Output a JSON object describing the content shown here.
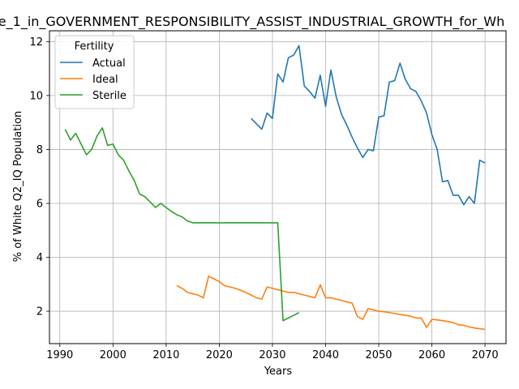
{
  "chart_data": {
    "type": "line",
    "title": "e_1_in_GOVERNMENT_RESPONSIBILITY_ASSIST_INDUSTRIAL_GROWTH_for_Wh",
    "xlabel": "Years",
    "ylabel": "% of White Q2_IQ Population",
    "xlim": [
      1988.05,
      2073.95
    ],
    "ylim": [
      0.8,
      12.4
    ],
    "xticks": [
      1990,
      2000,
      2010,
      2020,
      2030,
      2040,
      2050,
      2060,
      2070
    ],
    "yticks": [
      2,
      4,
      6,
      8,
      10,
      12
    ],
    "grid": true,
    "legend": {
      "title": "Fertility",
      "position": "upper-left"
    },
    "series": [
      {
        "name": "Actual",
        "color": "#1f77b4",
        "points": [
          [
            2026,
            9.15
          ],
          [
            2027,
            8.95
          ],
          [
            2028,
            8.75
          ],
          [
            2029,
            9.35
          ],
          [
            2030,
            9.15
          ],
          [
            2031,
            10.8
          ],
          [
            2032,
            10.5
          ],
          [
            2033,
            11.4
          ],
          [
            2034,
            11.5
          ],
          [
            2035,
            11.85
          ],
          [
            2036,
            10.35
          ],
          [
            2037,
            10.15
          ],
          [
            2038,
            9.9
          ],
          [
            2039,
            10.75
          ],
          [
            2040,
            9.6
          ],
          [
            2041,
            10.95
          ],
          [
            2042,
            9.95
          ],
          [
            2043,
            9.3
          ],
          [
            2044,
            8.9
          ],
          [
            2045,
            8.45
          ],
          [
            2046,
            8.05
          ],
          [
            2047,
            7.7
          ],
          [
            2048,
            8.0
          ],
          [
            2049,
            7.95
          ],
          [
            2050,
            9.2
          ],
          [
            2051,
            9.25
          ],
          [
            2052,
            10.5
          ],
          [
            2053,
            10.55
          ],
          [
            2054,
            11.2
          ],
          [
            2055,
            10.6
          ],
          [
            2056,
            10.25
          ],
          [
            2057,
            10.15
          ],
          [
            2058,
            9.8
          ],
          [
            2059,
            9.35
          ],
          [
            2060,
            8.55
          ],
          [
            2061,
            8.0
          ],
          [
            2062,
            6.8
          ],
          [
            2063,
            6.85
          ],
          [
            2064,
            6.3
          ],
          [
            2065,
            6.3
          ],
          [
            2066,
            5.95
          ],
          [
            2067,
            6.25
          ],
          [
            2068,
            6.0
          ],
          [
            2069,
            7.6
          ],
          [
            2070,
            7.5
          ]
        ]
      },
      {
        "name": "Ideal",
        "color": "#ff7f0e",
        "points": [
          [
            2012,
            2.95
          ],
          [
            2013,
            2.85
          ],
          [
            2014,
            2.7
          ],
          [
            2015,
            2.65
          ],
          [
            2016,
            2.6
          ],
          [
            2017,
            2.5
          ],
          [
            2018,
            3.3
          ],
          [
            2019,
            3.2
          ],
          [
            2020,
            3.1
          ],
          [
            2021,
            2.95
          ],
          [
            2022,
            2.9
          ],
          [
            2023,
            2.85
          ],
          [
            2024,
            2.78
          ],
          [
            2025,
            2.7
          ],
          [
            2026,
            2.6
          ],
          [
            2027,
            2.5
          ],
          [
            2028,
            2.45
          ],
          [
            2029,
            2.9
          ],
          [
            2030,
            2.85
          ],
          [
            2031,
            2.8
          ],
          [
            2032,
            2.75
          ],
          [
            2033,
            2.7
          ],
          [
            2034,
            2.7
          ],
          [
            2035,
            2.65
          ],
          [
            2036,
            2.6
          ],
          [
            2037,
            2.55
          ],
          [
            2038,
            2.5
          ],
          [
            2039,
            2.98
          ],
          [
            2040,
            2.5
          ],
          [
            2041,
            2.5
          ],
          [
            2042,
            2.45
          ],
          [
            2043,
            2.4
          ],
          [
            2044,
            2.35
          ],
          [
            2045,
            2.3
          ],
          [
            2046,
            1.8
          ],
          [
            2047,
            1.7
          ],
          [
            2048,
            2.1
          ],
          [
            2049,
            2.05
          ],
          [
            2050,
            2.0
          ],
          [
            2051,
            1.98
          ],
          [
            2052,
            1.95
          ],
          [
            2053,
            1.92
          ],
          [
            2054,
            1.88
          ],
          [
            2055,
            1.85
          ],
          [
            2056,
            1.82
          ],
          [
            2057,
            1.75
          ],
          [
            2058,
            1.75
          ],
          [
            2059,
            1.4
          ],
          [
            2060,
            1.7
          ],
          [
            2061,
            1.68
          ],
          [
            2062,
            1.65
          ],
          [
            2063,
            1.62
          ],
          [
            2064,
            1.58
          ],
          [
            2065,
            1.5
          ],
          [
            2066,
            1.48
          ],
          [
            2067,
            1.42
          ],
          [
            2068,
            1.38
          ],
          [
            2069,
            1.35
          ],
          [
            2070,
            1.33
          ]
        ]
      },
      {
        "name": "Sterile",
        "color": "#2ca02c",
        "points": [
          [
            1991,
            8.75
          ],
          [
            1992,
            8.35
          ],
          [
            1993,
            8.6
          ],
          [
            1994,
            8.2
          ],
          [
            1995,
            7.8
          ],
          [
            1996,
            8.0
          ],
          [
            1997,
            8.5
          ],
          [
            1998,
            8.8
          ],
          [
            1999,
            8.15
          ],
          [
            2000,
            8.2
          ],
          [
            2001,
            7.8
          ],
          [
            2002,
            7.6
          ],
          [
            2003,
            7.2
          ],
          [
            2004,
            6.85
          ],
          [
            2005,
            6.35
          ],
          [
            2006,
            6.25
          ],
          [
            2007,
            6.05
          ],
          [
            2008,
            5.85
          ],
          [
            2009,
            6.0
          ],
          [
            2010,
            5.85
          ],
          [
            2011,
            5.7
          ],
          [
            2012,
            5.58
          ],
          [
            2013,
            5.5
          ],
          [
            2014,
            5.35
          ],
          [
            2015,
            5.28
          ],
          [
            2016,
            5.28
          ],
          [
            2020,
            5.28
          ],
          [
            2025,
            5.28
          ],
          [
            2030,
            5.28
          ],
          [
            2031,
            5.28
          ],
          [
            2032,
            1.65
          ],
          [
            2033,
            1.75
          ],
          [
            2034,
            1.85
          ],
          [
            2035,
            1.95
          ]
        ]
      }
    ]
  }
}
